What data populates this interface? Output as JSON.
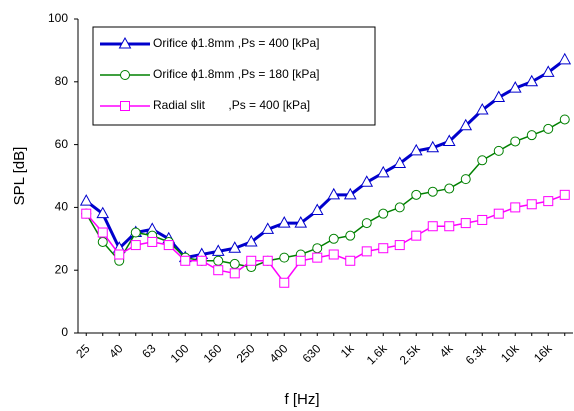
{
  "chart_data": {
    "type": "line",
    "x_label": "f [Hz]",
    "y_label": "SPL [dB]",
    "categories": [
      "25",
      null,
      "40",
      null,
      "63",
      null,
      "100",
      null,
      "160",
      null,
      "250",
      null,
      "400",
      null,
      "630",
      null,
      "1k",
      null,
      "1.6k",
      null,
      "2.5k",
      null,
      "4k",
      null,
      "6.3k",
      null,
      "10k",
      null,
      "16k",
      null
    ],
    "ylim": [
      0,
      100
    ],
    "yticks": [
      0,
      20,
      40,
      60,
      80,
      100
    ],
    "grid": false,
    "legend": "upper left",
    "series": [
      {
        "name": "Orifice ϕ1.8mm ,Ps = 400 [kPa]",
        "color": "#0000cc",
        "marker": "triangle",
        "width": 3,
        "values": [
          42,
          38,
          27,
          32,
          33,
          30,
          24,
          25,
          26,
          27,
          29,
          33,
          35,
          35,
          39,
          44,
          44,
          48,
          51,
          54,
          58,
          59,
          61,
          66,
          71,
          75,
          78,
          80,
          83,
          87
        ]
      },
      {
        "name": "Orifice ϕ1.8mm ,Ps = 180 [kPa]",
        "color": "#008000",
        "marker": "circle",
        "width": 1.5,
        "values": [
          38,
          29,
          23,
          32,
          31,
          29,
          24,
          23,
          23,
          22,
          21,
          23,
          24,
          25,
          27,
          30,
          31,
          35,
          38,
          40,
          44,
          45,
          46,
          49,
          55,
          58,
          61,
          63,
          65,
          68
        ]
      },
      {
        "name": "Radial slit       ,Ps = 400 [kPa]",
        "color": "#ff00ff",
        "marker": "square",
        "width": 1.5,
        "values": [
          38,
          32,
          25,
          28,
          29,
          28,
          23,
          23,
          20,
          19,
          23,
          23,
          16,
          23,
          24,
          25,
          23,
          26,
          27,
          28,
          31,
          34,
          34,
          35,
          36,
          38,
          40,
          41,
          42,
          44
        ]
      }
    ]
  }
}
